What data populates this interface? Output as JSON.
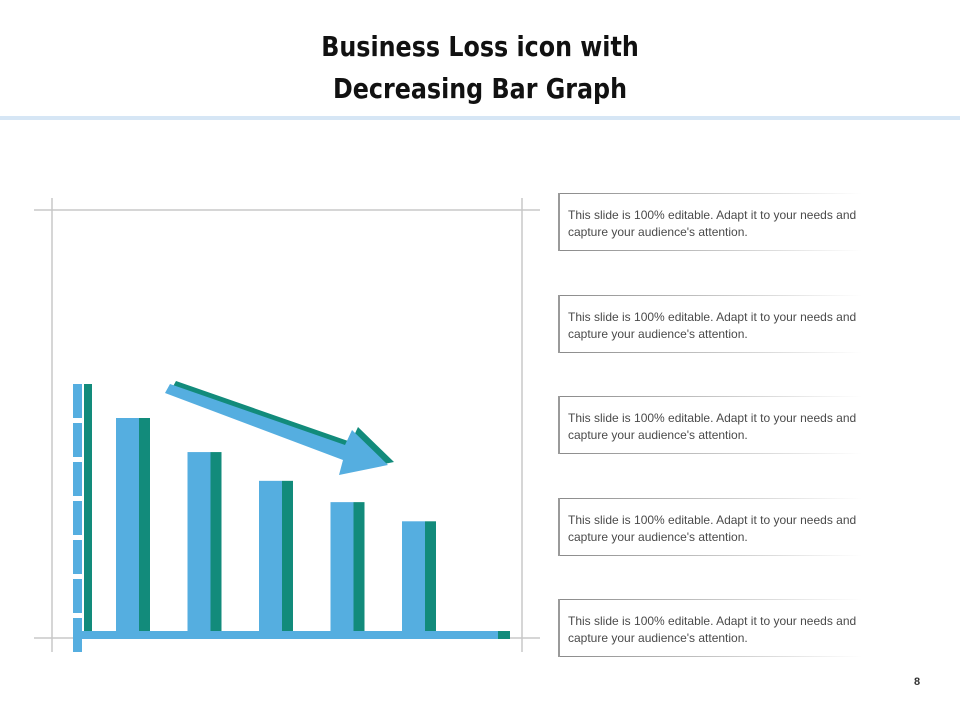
{
  "slide": {
    "title_line1": "Business Loss icon with",
    "title_line2": "Decreasing Bar Graph",
    "page_number": "8"
  },
  "text_boxes": [
    "This slide is 100% editable. Adapt it to your needs and capture your audience's attention.",
    "This slide is 100% editable. Adapt it to your needs and capture your audience's attention.",
    "This slide is 100% editable. Adapt it to your needs and capture your audience's attention.",
    "This slide is 100% editable. Adapt it to your needs and capture your audience's attention.",
    "This slide is 100% editable. Adapt it to your needs and capture your audience's attention."
  ],
  "icon": {
    "name": "decreasing-bar-graph-icon",
    "bars": [
      {
        "relative_height": 1.0
      },
      {
        "relative_height": 0.84
      },
      {
        "relative_height": 0.705
      },
      {
        "relative_height": 0.605
      },
      {
        "relative_height": 0.515
      }
    ],
    "arrow_direction": "down-right"
  },
  "colors": {
    "bar_fill": "#55aee0",
    "bar_shadow": "#128b7b",
    "frame_line": "#c8c8c8",
    "title_rule": "#d6e6f5",
    "title_text": "#111111",
    "body_text": "#4a4a4a"
  }
}
